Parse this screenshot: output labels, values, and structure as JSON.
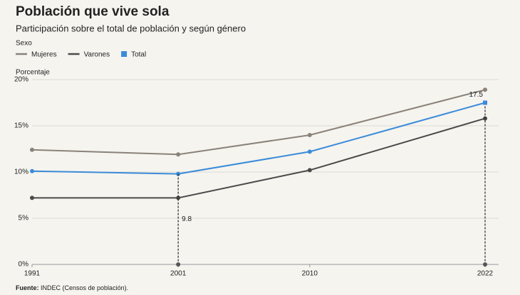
{
  "chart_data": {
    "type": "line",
    "title": "Población que vive sola",
    "subtitle": "Participación sobre el total de población y según género",
    "legend_title": "Sexo",
    "y_label": "Porcentaje",
    "x": [
      1991,
      2001,
      2010,
      2022
    ],
    "xlim": [
      1991,
      2022
    ],
    "xticks": [
      1991,
      2001,
      2010,
      2022
    ],
    "ylim": [
      0,
      20
    ],
    "yticks": [
      {
        "value": 0,
        "label": "0%"
      },
      {
        "value": 5,
        "label": "5%"
      },
      {
        "value": 10,
        "label": "10%"
      },
      {
        "value": 15,
        "label": "15%"
      },
      {
        "value": 20,
        "label": "20%"
      }
    ],
    "grid": true,
    "series": [
      {
        "name": "Mujeres",
        "color": "#8a8279",
        "legend_symbol": "line",
        "values": [
          12.4,
          11.9,
          14.0,
          18.9
        ]
      },
      {
        "name": "Varones",
        "color": "#4a4a4a",
        "legend_symbol": "line",
        "values": [
          7.2,
          7.2,
          10.2,
          15.8
        ]
      },
      {
        "name": "Total",
        "color": "#3b8bd9",
        "legend_symbol": "square",
        "values": [
          10.1,
          9.8,
          12.2,
          17.5
        ],
        "value_labels": [
          null,
          "9.8",
          null,
          "17.5"
        ]
      }
    ],
    "source": {
      "label": "Fuente:",
      "text": "INDEC (Censos de población)."
    }
  }
}
